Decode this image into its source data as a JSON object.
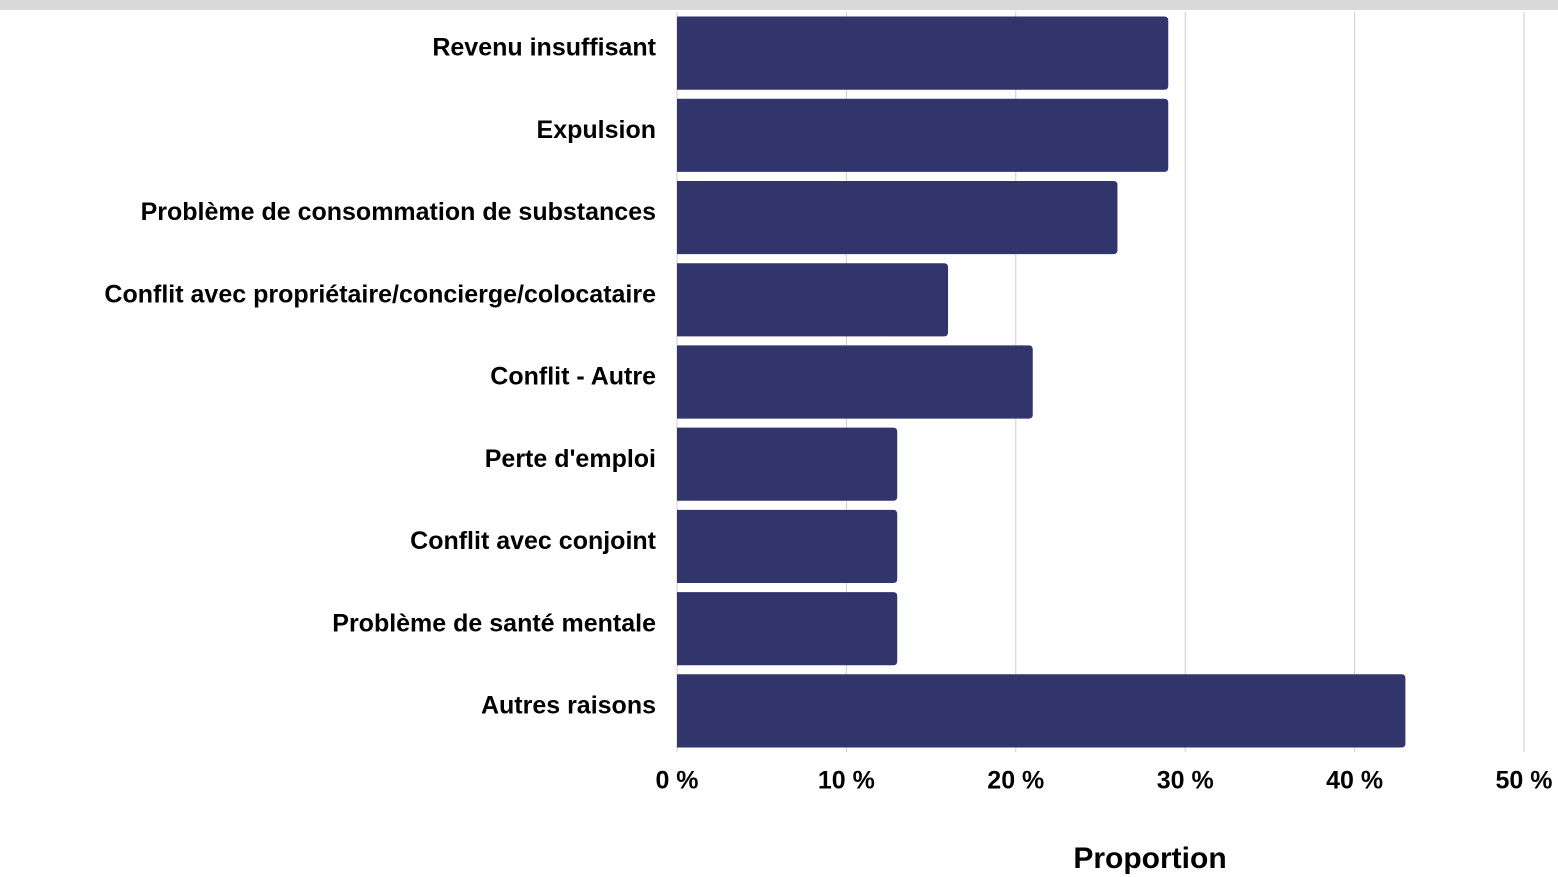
{
  "chart_data": {
    "type": "bar",
    "orientation": "horizontal",
    "categories": [
      "Revenu insuffisant",
      "Expulsion",
      "Problème de consommation de substances",
      "Conflit avec propriétaire/concierge/colocataire",
      "Conflit - Autre",
      "Perte d'emploi",
      "Conflit avec conjoint",
      "Problème de santé mentale",
      "Autres raisons"
    ],
    "values": [
      29,
      29,
      26,
      16,
      21,
      13,
      13,
      13,
      43
    ],
    "color": "#31356b",
    "xlim": [
      0,
      50
    ],
    "xticks": [
      {
        "value": 0,
        "label": "0 %"
      },
      {
        "value": 10,
        "label": "10 %"
      },
      {
        "value": 20,
        "label": "20 %"
      },
      {
        "value": 30,
        "label": "30 %"
      },
      {
        "value": 40,
        "label": "40 %"
      },
      {
        "value": 50,
        "label": "50 %"
      }
    ],
    "x_label": "Proportion",
    "grid": true
  }
}
